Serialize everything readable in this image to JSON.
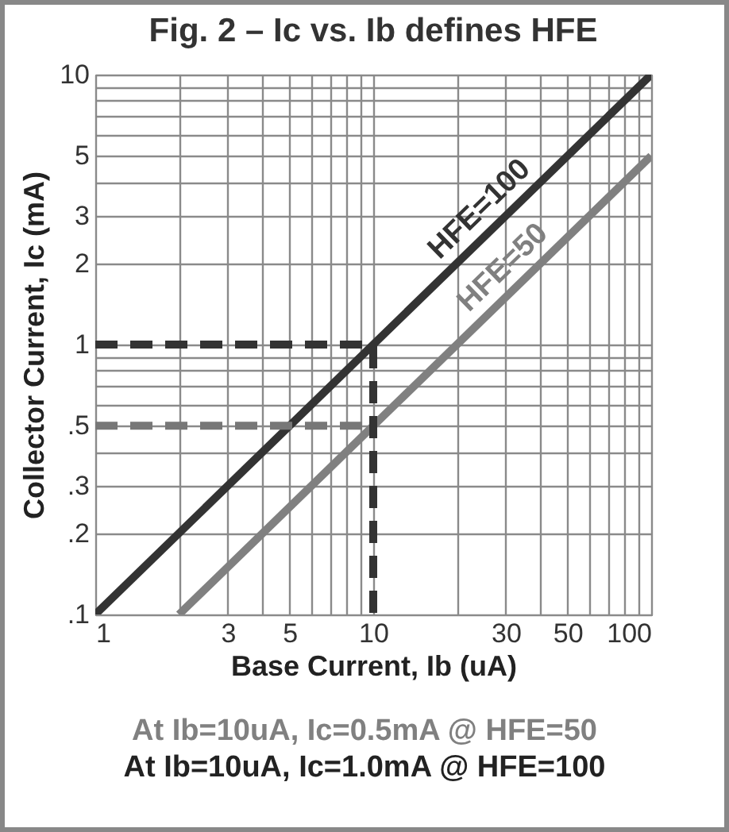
{
  "chart_data": {
    "type": "line",
    "title": "Fig. 2 – Ic vs. Ib defines HFE",
    "xlabel": "Base Current, Ib (uA)",
    "ylabel": "Collector Current, Ic (mA)",
    "log": "xy",
    "grid": true,
    "legend": false,
    "line_style": "solid",
    "marker": "none",
    "xlim": [
      1,
      100
    ],
    "ylim": [
      0.1,
      10
    ],
    "xticks": [
      1,
      {
        "value": 2,
        "label": null
      },
      3,
      {
        "value": 4,
        "label": null
      },
      5,
      {
        "value": 6,
        "label": null
      },
      {
        "value": 7,
        "label": null
      },
      {
        "value": 8,
        "label": null
      },
      {
        "value": 9,
        "label": null
      },
      10,
      {
        "value": 20,
        "label": null
      },
      30,
      {
        "value": 40,
        "label": null
      },
      50,
      {
        "value": 60,
        "label": null
      },
      {
        "value": 70,
        "label": null
      },
      {
        "value": 80,
        "label": null
      },
      {
        "value": 90,
        "label": null
      },
      100
    ],
    "yticks": [
      {
        "value": 0.1,
        "label": ".1"
      },
      {
        "value": 0.2,
        "label": ".2"
      },
      {
        "value": 0.3,
        "label": ".3"
      },
      {
        "value": 0.4,
        "label": null
      },
      {
        "value": 0.5,
        "label": ".5"
      },
      {
        "value": 0.6,
        "label": null
      },
      {
        "value": 0.7,
        "label": null
      },
      {
        "value": 0.8,
        "label": null
      },
      {
        "value": 0.9,
        "label": null
      },
      1,
      2,
      3,
      {
        "value": 4,
        "label": null
      },
      5,
      {
        "value": 6,
        "label": null
      },
      {
        "value": 7,
        "label": null
      },
      {
        "value": 8,
        "label": null
      },
      {
        "value": 9,
        "label": null
      },
      10
    ],
    "series": [
      {
        "name": "HFE=100",
        "color": "#333333",
        "x": [
          1,
          100
        ],
        "values": [
          0.1,
          10
        ]
      },
      {
        "name": "HFE=50",
        "color": "#808080",
        "x": [
          2,
          100
        ],
        "values": [
          0.1,
          5
        ]
      },
      {
        "color": "#333333",
        "line_style": "dashed",
        "x": [
          1,
          10,
          10
        ],
        "values": [
          1,
          1,
          0.1
        ]
      },
      {
        "color": "#777777",
        "line_style": "dashed",
        "x": [
          1,
          10
        ],
        "values": [
          0.5,
          0.5
        ]
      }
    ],
    "annotations": [
      "At Ib=10uA, Ic=0.5mA @ HFE=50",
      "At Ib=10uA, Ic=1.0mA @ HFE=100"
    ]
  }
}
